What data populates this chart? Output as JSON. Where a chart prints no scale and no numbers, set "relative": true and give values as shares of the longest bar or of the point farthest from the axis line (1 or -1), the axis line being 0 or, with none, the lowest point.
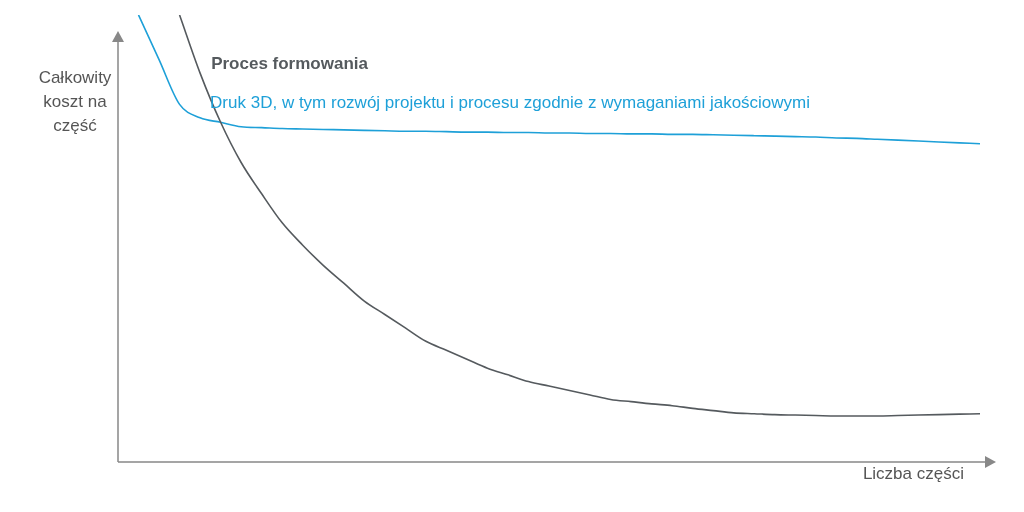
{
  "chart_data": {
    "type": "line",
    "relative": true,
    "xlabel": "Liczba części",
    "ylabel": "Całkowity koszt na część",
    "legend": false,
    "grid": false,
    "marker": "none",
    "line_style": "solid",
    "categories": [
      null,
      null,
      null,
      null,
      null,
      null,
      null,
      null,
      null,
      null,
      null,
      null,
      null,
      null,
      null,
      null,
      null,
      null,
      null,
      null,
      null,
      null,
      null,
      null,
      null,
      null,
      null,
      null,
      null,
      null,
      null,
      null,
      null,
      null,
      null,
      null,
      null,
      null,
      null,
      null,
      null,
      null,
      null
    ],
    "series": [
      {
        "name": "Proces formowania",
        "color": "#555a5e",
        "values": [
          null,
          null,
          null,
          1,
          0.87,
          0.76,
          0.67,
          0.6,
          0.535,
          0.485,
          0.44,
          0.4,
          0.36,
          0.33,
          0.3,
          0.27,
          0.25,
          0.23,
          0.21,
          0.195,
          0.18,
          0.17,
          0.16,
          0.15,
          0.14,
          0.135,
          0.13,
          0.126,
          0.12,
          0.115,
          0.11,
          0.108,
          0.106,
          0.105,
          0.104,
          0.103,
          0.103,
          0.103,
          0.104,
          0.105,
          0.106,
          0.107,
          0.108
        ]
      },
      {
        "name": "Druk 3D, w tym rozwój projektu i procesu zgodnie z wymaganiami jakościowymi",
        "color": "#1ea0d8",
        "values": [
          null,
          1,
          0.9,
          0.8,
          0.77,
          0.76,
          0.75,
          0.748,
          0.746,
          0.745,
          0.744,
          0.743,
          0.742,
          0.741,
          0.74,
          0.74,
          0.739,
          0.738,
          0.738,
          0.737,
          0.737,
          0.736,
          0.736,
          0.735,
          0.735,
          0.734,
          0.734,
          0.733,
          0.733,
          0.732,
          0.731,
          0.73,
          0.729,
          0.728,
          0.727,
          0.725,
          0.724,
          0.722,
          0.72,
          0.718,
          0.716,
          0.714,
          0.712
        ]
      }
    ]
  }
}
